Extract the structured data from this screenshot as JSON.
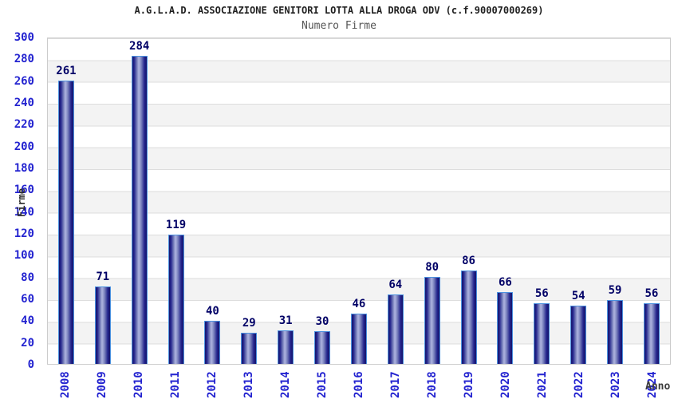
{
  "header": {
    "title": "A.G.L.A.D. ASSOCIAZIONE GENITORI LOTTA ALLA DROGA ODV (c.f.90007000269)",
    "subtitle": "Numero Firme"
  },
  "chart_data": {
    "type": "bar",
    "title": "A.G.L.A.D. ASSOCIAZIONE GENITORI LOTTA ALLA DROGA ODV (c.f.90007000269)",
    "subtitle": "Numero Firme",
    "xlabel": "Anno",
    "ylabel": "Firme",
    "categories": [
      "2008",
      "2009",
      "2010",
      "2011",
      "2012",
      "2013",
      "2014",
      "2015",
      "2016",
      "2017",
      "2018",
      "2019",
      "2020",
      "2021",
      "2022",
      "2023",
      "2024"
    ],
    "values": [
      261,
      71,
      284,
      119,
      40,
      29,
      31,
      30,
      46,
      64,
      80,
      86,
      66,
      56,
      54,
      59,
      56
    ],
    "ylim": [
      0,
      300
    ],
    "ytick_step": 20,
    "grid": "horizontal alternating bands with gridlines every 20",
    "legend": "none",
    "colors": {
      "bar_edge_dark": "#16166b",
      "bar_highlight": "#a9afdc",
      "bar_outline": "#4c92e0",
      "value_label": "#000066",
      "axis_tick_label": "#2323d0",
      "band_gray": "#f3f3f3",
      "grid_line": "#dddddd",
      "plot_border": "#cccccc",
      "title_color": "#1f1f1f",
      "subtitle_color": "#555555",
      "axis_title_color": "#2b2b2b"
    }
  }
}
